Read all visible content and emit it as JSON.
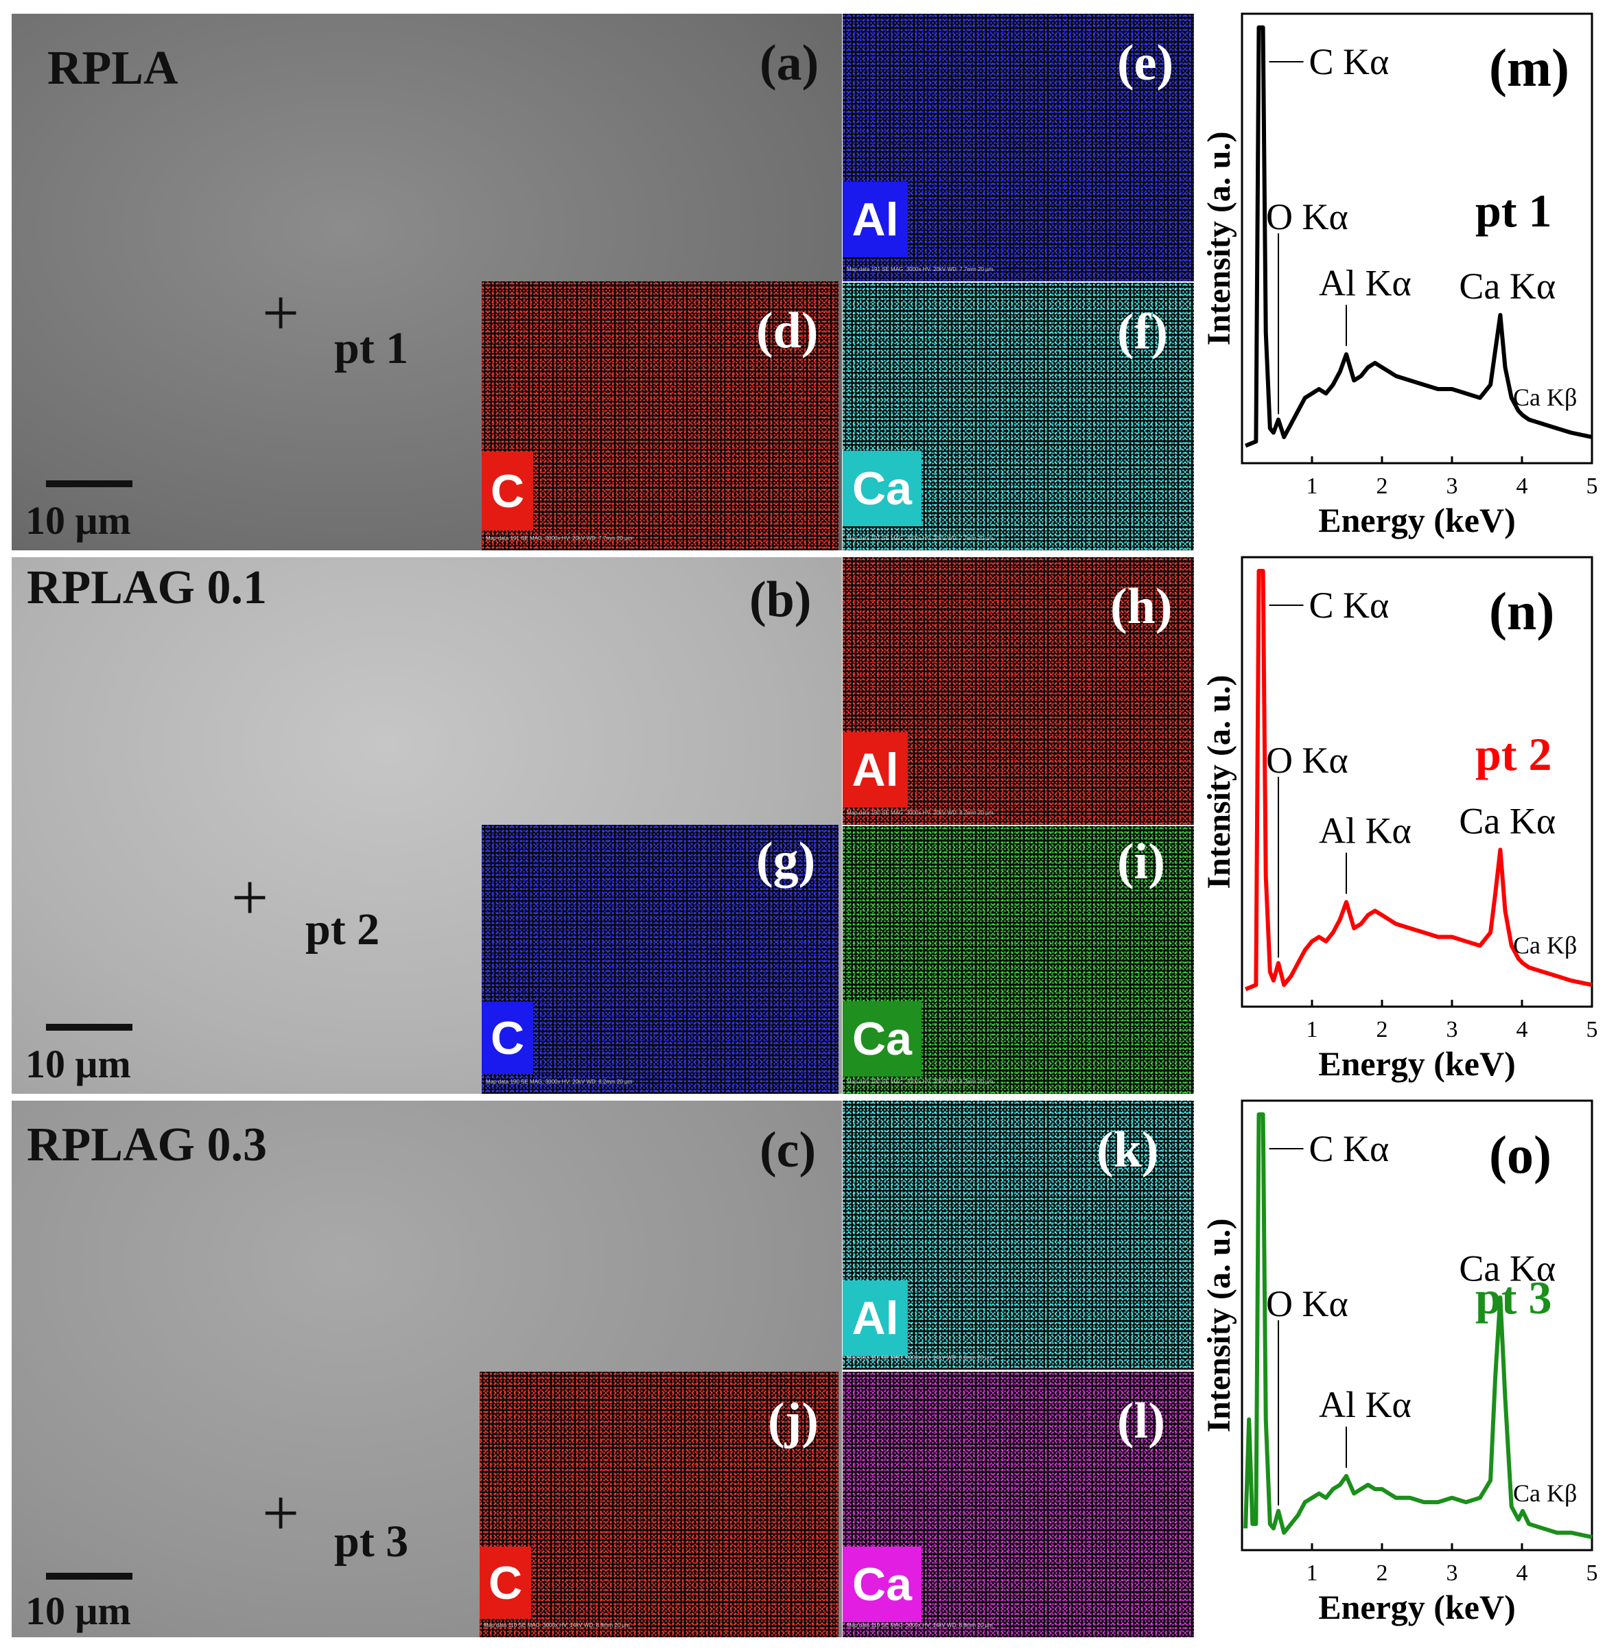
{
  "rows": [
    {
      "sample": "RPLA",
      "sem_letter": "(a)",
      "pt": "pt 1",
      "scale": "10 μm",
      "maps": [
        {
          "letter": "(e)",
          "element": "Al",
          "color": "#1418e6",
          "dot": "#3a3cff",
          "label_bg": "#1a1aee"
        },
        {
          "letter": "(d)",
          "element": "C",
          "color": "#d11a14",
          "dot": "#ff3a30",
          "label_bg": "#e41b13"
        },
        {
          "letter": "(f)",
          "element": "Ca",
          "color": "#19c6c6",
          "dot": "#52f0f0",
          "label_bg": "#21c3c3"
        }
      ],
      "map_footer": "Map data 191   SE MAG: 3000x  HV: 20kV  WD: 7.7mm   20 μm",
      "spectrum": {
        "letter": "(m)",
        "pt": "pt 1",
        "color": "#000000"
      }
    },
    {
      "sample": "RPLAG 0.1",
      "sem_letter": "(b)",
      "pt": "pt 2",
      "scale": "10 μm",
      "maps": [
        {
          "letter": "(h)",
          "element": "Al",
          "color": "#d11a14",
          "dot": "#ff3a30",
          "label_bg": "#e41b13"
        },
        {
          "letter": "(g)",
          "element": "C",
          "color": "#1418e6",
          "dot": "#3a3cff",
          "label_bg": "#1a1aee"
        },
        {
          "letter": "(i)",
          "element": "Ca",
          "color": "#1c9b1c",
          "dot": "#3cdc3c",
          "label_bg": "#1f8f1f"
        }
      ],
      "map_footer": "Map data 190   SE MAG: 3000x  HV: 20kV  WD: 8.2mm   20 μm",
      "spectrum": {
        "letter": "(n)",
        "pt": "pt 2",
        "color": "#ff0000"
      }
    },
    {
      "sample": "RPLAG 0.3",
      "sem_letter": "(c)",
      "pt": "pt 3",
      "scale": "10 μm",
      "maps": [
        {
          "letter": "(k)",
          "element": "Al",
          "color": "#19c6c6",
          "dot": "#52f0f0",
          "label_bg": "#21c3c3"
        },
        {
          "letter": "(j)",
          "element": "C",
          "color": "#d11a14",
          "dot": "#ff3a30",
          "label_bg": "#e41b13"
        },
        {
          "letter": "(l)",
          "element": "Ca",
          "color": "#a81aa8",
          "dot": "#e23ce2",
          "label_bg": "#e21ee2"
        }
      ],
      "map_footer": "Map data 110   SE MAG: 3000x  HV: 14kV  WD: 8.8mm   20 μm",
      "spectrum": {
        "letter": "(o)",
        "pt": "pt 3",
        "color": "#1a8f1a"
      }
    }
  ],
  "chart_data": [
    {
      "type": "line",
      "panel": "(m)",
      "series_color": "#000000",
      "xlabel": "Energy (keV)",
      "ylabel": "Intensity (a. u.)",
      "xlim": [
        0,
        5
      ],
      "xticks": [
        1,
        2,
        3,
        4,
        5
      ],
      "peaks": [
        "C Kα",
        "O Kα",
        "Al Kα",
        "Ca Kα",
        "Ca Kβ"
      ],
      "peak_energies_keV": [
        0.27,
        0.52,
        1.49,
        3.69,
        4.01
      ],
      "x": [
        0.05,
        0.2,
        0.24,
        0.27,
        0.3,
        0.34,
        0.4,
        0.45,
        0.52,
        0.6,
        0.7,
        0.8,
        0.9,
        1.0,
        1.1,
        1.2,
        1.3,
        1.4,
        1.49,
        1.6,
        1.7,
        1.8,
        1.9,
        2.0,
        2.1,
        2.2,
        2.4,
        2.6,
        2.8,
        3.0,
        3.2,
        3.4,
        3.55,
        3.62,
        3.69,
        3.76,
        3.85,
        3.95,
        4.01,
        4.1,
        4.3,
        4.5,
        4.7,
        5.0
      ],
      "y": [
        0.04,
        0.05,
        1.0,
        1.0,
        1.0,
        0.3,
        0.08,
        0.07,
        0.1,
        0.06,
        0.09,
        0.12,
        0.15,
        0.16,
        0.17,
        0.16,
        0.18,
        0.21,
        0.25,
        0.19,
        0.2,
        0.22,
        0.23,
        0.22,
        0.21,
        0.2,
        0.19,
        0.18,
        0.17,
        0.17,
        0.16,
        0.15,
        0.18,
        0.26,
        0.34,
        0.22,
        0.15,
        0.12,
        0.11,
        0.1,
        0.09,
        0.08,
        0.07,
        0.06
      ]
    },
    {
      "type": "line",
      "panel": "(n)",
      "series_color": "#ff0000",
      "xlabel": "Energy (keV)",
      "ylabel": "Intensity (a. u.)",
      "xlim": [
        0,
        5
      ],
      "xticks": [
        1,
        2,
        3,
        4,
        5
      ],
      "peaks": [
        "C Kα",
        "O Kα",
        "Al Kα",
        "Ca Kα",
        "Ca Kβ"
      ],
      "peak_energies_keV": [
        0.27,
        0.52,
        1.49,
        3.69,
        4.01
      ],
      "x": [
        0.05,
        0.2,
        0.24,
        0.27,
        0.3,
        0.34,
        0.4,
        0.45,
        0.52,
        0.6,
        0.7,
        0.8,
        0.9,
        1.0,
        1.1,
        1.2,
        1.3,
        1.4,
        1.49,
        1.6,
        1.7,
        1.8,
        1.9,
        2.0,
        2.1,
        2.2,
        2.4,
        2.6,
        2.8,
        3.0,
        3.2,
        3.4,
        3.55,
        3.62,
        3.69,
        3.76,
        3.85,
        3.95,
        4.01,
        4.1,
        4.3,
        4.5,
        4.7,
        5.0
      ],
      "y": [
        0.04,
        0.05,
        1.0,
        1.0,
        1.0,
        0.3,
        0.08,
        0.06,
        0.1,
        0.05,
        0.07,
        0.1,
        0.13,
        0.15,
        0.16,
        0.15,
        0.17,
        0.2,
        0.24,
        0.18,
        0.19,
        0.21,
        0.22,
        0.21,
        0.2,
        0.19,
        0.18,
        0.17,
        0.16,
        0.16,
        0.15,
        0.14,
        0.17,
        0.26,
        0.36,
        0.22,
        0.14,
        0.11,
        0.1,
        0.09,
        0.08,
        0.07,
        0.06,
        0.05
      ]
    },
    {
      "type": "line",
      "panel": "(o)",
      "series_color": "#1a8f1a",
      "xlabel": "Energy (keV)",
      "ylabel": "Intensity (a. u.)",
      "xlim": [
        0,
        5
      ],
      "xticks": [
        1,
        2,
        3,
        4,
        5
      ],
      "peaks": [
        "C Kα",
        "O Kα",
        "Al Kα",
        "Ca Kα",
        "Ca Kβ"
      ],
      "peak_energies_keV": [
        0.27,
        0.52,
        1.49,
        3.69,
        4.01
      ],
      "x": [
        0.05,
        0.1,
        0.15,
        0.2,
        0.24,
        0.27,
        0.3,
        0.34,
        0.4,
        0.45,
        0.52,
        0.6,
        0.7,
        0.8,
        0.9,
        1.0,
        1.1,
        1.2,
        1.3,
        1.4,
        1.49,
        1.6,
        1.7,
        1.8,
        1.9,
        2.0,
        2.1,
        2.2,
        2.4,
        2.6,
        2.8,
        3.0,
        3.2,
        3.4,
        3.55,
        3.62,
        3.69,
        3.76,
        3.85,
        3.95,
        4.01,
        4.1,
        4.3,
        4.5,
        4.7,
        5.0
      ],
      "y": [
        0.05,
        0.3,
        0.06,
        0.06,
        1.0,
        1.0,
        1.0,
        0.3,
        0.06,
        0.05,
        0.09,
        0.04,
        0.06,
        0.08,
        0.11,
        0.12,
        0.13,
        0.12,
        0.14,
        0.15,
        0.17,
        0.13,
        0.14,
        0.15,
        0.14,
        0.14,
        0.13,
        0.12,
        0.12,
        0.11,
        0.11,
        0.12,
        0.11,
        0.12,
        0.16,
        0.4,
        0.58,
        0.35,
        0.1,
        0.07,
        0.09,
        0.06,
        0.05,
        0.04,
        0.04,
        0.03
      ]
    }
  ]
}
